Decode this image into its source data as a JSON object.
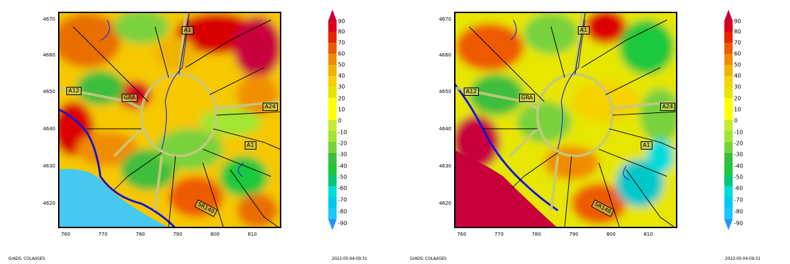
{
  "colors": {
    "sea": "#48c8f0",
    "coast": "#1a1ae0",
    "roads": "#000000",
    "ring_road": "#c8c880",
    "scale": [
      "#1e96ff",
      "#00c8c8",
      "#00dcdc",
      "#1ec83c",
      "#3cbe3c",
      "#78d23c",
      "#a0e632",
      "#e6e600",
      "#f5d200",
      "#f0b400",
      "#f08c00",
      "#ee5a00",
      "#e82300",
      "#dc0000",
      "#c8003c"
    ]
  },
  "panels": [
    {
      "y_ticks": [
        "4670",
        "4660",
        "4650",
        "4640",
        "4630",
        "4620"
      ],
      "x_ticks": [
        "760",
        "770",
        "780",
        "790",
        "800",
        "810"
      ],
      "road_labels": [
        "A1",
        "A12",
        "GRA",
        "A24",
        "A1",
        "SR148"
      ],
      "colorbar_labels": [
        "90",
        "80",
        "70",
        "60",
        "50",
        "40",
        "30",
        "20",
        "10",
        "0",
        "-10",
        "-20",
        "-30",
        "-40",
        "-50",
        "-60",
        "-70",
        "-80",
        "-90"
      ],
      "footer_left": "GrADS: COLA/IGES",
      "footer_right": "2022-05-04-09:31"
    },
    {
      "y_ticks": [
        "4670",
        "4660",
        "4650",
        "4640",
        "4630",
        "4620"
      ],
      "x_ticks": [
        "760",
        "770",
        "780",
        "790",
        "800",
        "810"
      ],
      "road_labels": [
        "A1",
        "A12",
        "GRA",
        "A24",
        "A1",
        "SR148"
      ],
      "colorbar_labels": [
        "90",
        "80",
        "70",
        "60",
        "50",
        "40",
        "30",
        "20",
        "10",
        "0",
        "-10",
        "-20",
        "-30",
        "-40",
        "-50",
        "-60",
        "-70",
        "-80",
        "-90"
      ],
      "footer_left": "GrADS: COLA/IGES",
      "footer_right": "2022-05-04-09:31"
    }
  ]
}
